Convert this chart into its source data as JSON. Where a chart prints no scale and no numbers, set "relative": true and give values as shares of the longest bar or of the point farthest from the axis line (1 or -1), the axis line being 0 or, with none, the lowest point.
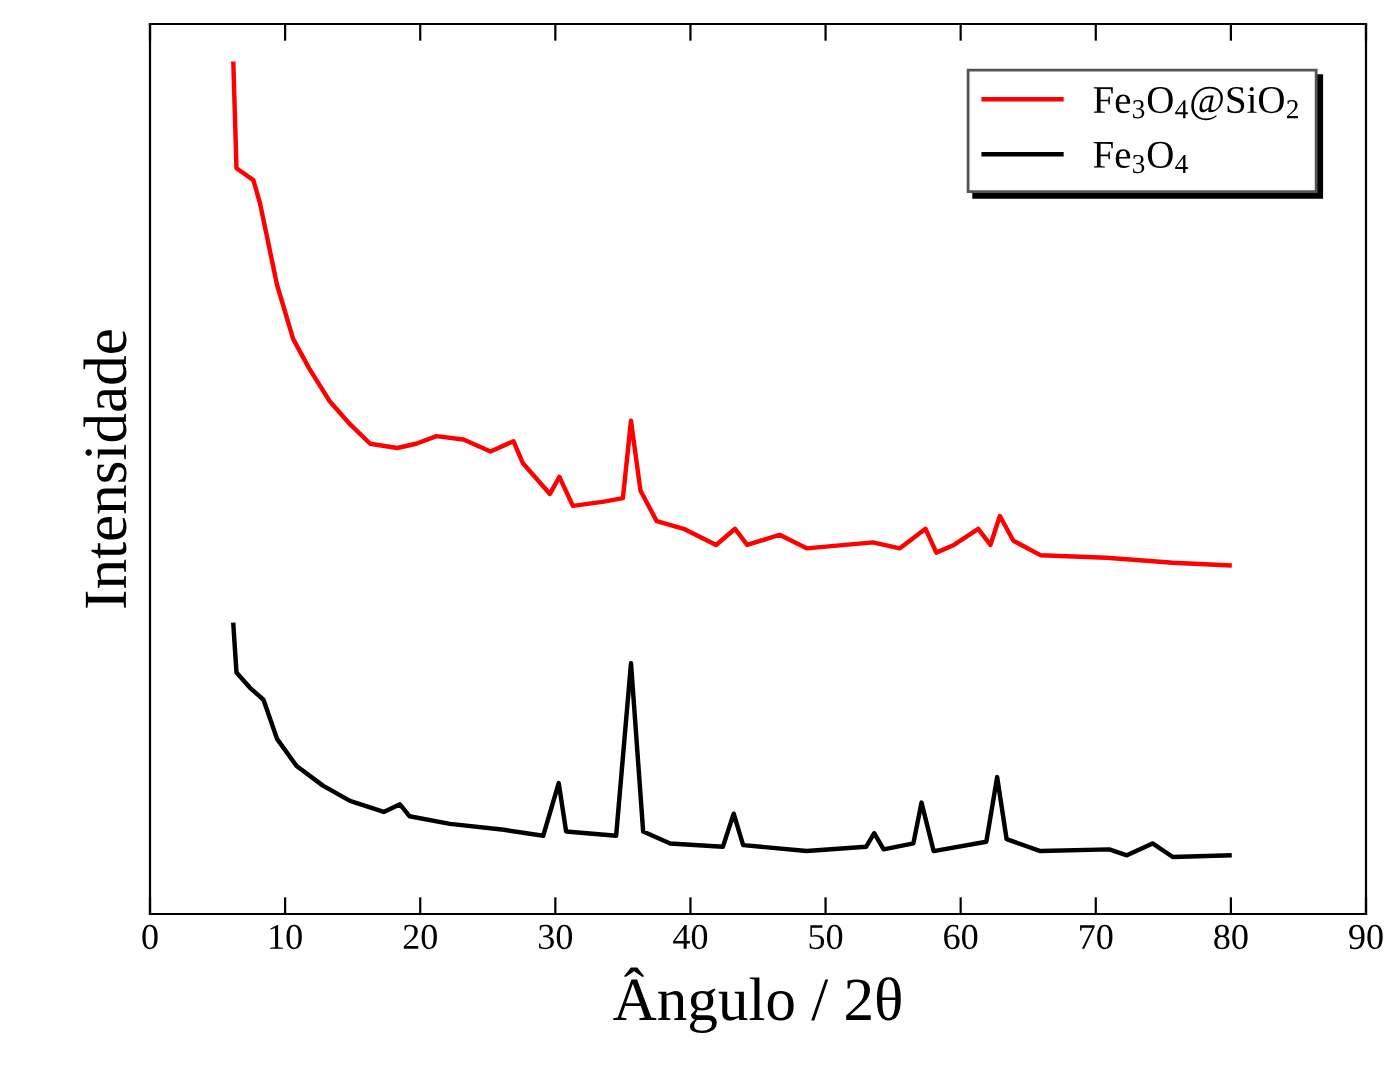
{
  "chart_data": {
    "type": "line",
    "xlabel": "Ângulo / 2θ",
    "ylabel": "Intensidade",
    "relative": true,
    "xlim": [
      0,
      90
    ],
    "xticks": [
      0,
      10,
      20,
      30,
      40,
      50,
      60,
      70,
      80,
      90
    ],
    "grid": false,
    "legend": "top right",
    "tick_labels": "x",
    "series": [
      {
        "name": "Fe$_{3}$O$_{4}$@SiO$_{2}$",
        "color": "#ff0000",
        "x": [
          6.17,
          6.4,
          7.65,
          8.14,
          9.4,
          10.6,
          11.8,
          13.3,
          14.8,
          16.3,
          18.3,
          19.7,
          21.2,
          23.2,
          25.2,
          26.9,
          27.6,
          29.6,
          30.3,
          31.3,
          33.6,
          35.0,
          35.6,
          36.3,
          37.5,
          39.5,
          41.9,
          43.3,
          44.2,
          46.6,
          48.6,
          53.5,
          55.5,
          57.4,
          58.2,
          59.5,
          61.3,
          62.2,
          62.9,
          63.9,
          65.9,
          70.8,
          75.7,
          79.9
        ],
        "values": [
          1.0,
          0.877,
          0.863,
          0.836,
          0.74,
          0.676,
          0.641,
          0.603,
          0.576,
          0.553,
          0.548,
          0.553,
          0.562,
          0.558,
          0.544,
          0.556,
          0.53,
          0.494,
          0.514,
          0.48,
          0.485,
          0.489,
          0.58,
          0.498,
          0.462,
          0.453,
          0.434,
          0.453,
          0.434,
          0.446,
          0.43,
          0.437,
          0.43,
          0.453,
          0.425,
          0.434,
          0.453,
          0.434,
          0.468,
          0.439,
          0.422,
          0.419,
          0.413,
          0.41
        ]
      },
      {
        "name": "Fe$_{3}$O$_{4}$",
        "color": "#000000",
        "x": [
          6.17,
          6.4,
          7.4,
          8.4,
          9.4,
          10.85,
          12.8,
          14.8,
          17.3,
          18.5,
          19.2,
          22.2,
          26.2,
          29.1,
          30.25,
          30.8,
          34.5,
          35.6,
          36.5,
          38.5,
          42.4,
          43.2,
          43.9,
          48.6,
          53.0,
          53.6,
          54.3,
          56.5,
          57.1,
          58.0,
          61.9,
          62.7,
          63.4,
          65.9,
          71.0,
          72.3,
          74.2,
          75.7,
          79.9
        ],
        "values": [
          0.34,
          0.284,
          0.266,
          0.252,
          0.206,
          0.174,
          0.151,
          0.133,
          0.12,
          0.129,
          0.115,
          0.106,
          0.099,
          0.092,
          0.154,
          0.097,
          0.092,
          0.295,
          0.097,
          0.083,
          0.079,
          0.118,
          0.081,
          0.074,
          0.079,
          0.095,
          0.076,
          0.083,
          0.131,
          0.074,
          0.085,
          0.161,
          0.088,
          0.074,
          0.076,
          0.069,
          0.083,
          0.067,
          0.069
        ]
      }
    ]
  }
}
